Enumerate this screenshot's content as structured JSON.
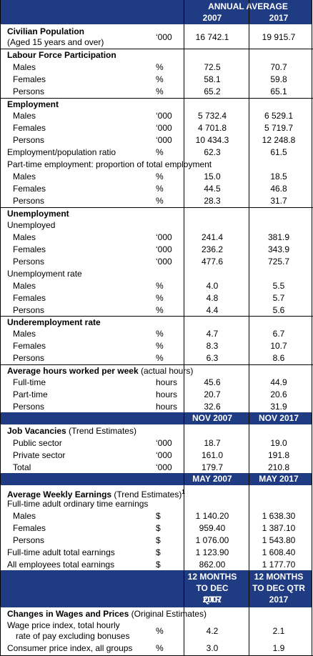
{
  "header": {
    "annual_average": "ANNUAL AVERAGE",
    "col1": "2007",
    "col2": "2017"
  },
  "civilian": {
    "label_line1": "Civilian Population",
    "label_line2": "(Aged 15 years and over)",
    "unit": "‘000",
    "v1": "16 742.1",
    "v2": "19 915.7"
  },
  "lfp": {
    "title": "Labour Force Participation",
    "rows": [
      {
        "label": "Males",
        "unit": "%",
        "v1": "72.5",
        "v2": "70.7"
      },
      {
        "label": "Females",
        "unit": "%",
        "v1": "58.1",
        "v2": "59.8"
      },
      {
        "label": "Persons",
        "unit": "%",
        "v1": "65.2",
        "v2": "65.1"
      }
    ]
  },
  "employment": {
    "title": "Employment",
    "rows": [
      {
        "label": "Males",
        "unit": "‘000",
        "v1": "5 732.4",
        "v2": "6 529.1"
      },
      {
        "label": "Females",
        "unit": "‘000",
        "v1": "4 701.8",
        "v2": "5 719.7"
      },
      {
        "label": "Persons",
        "unit": "‘000",
        "v1": "10 434.3",
        "v2": "12 248.8"
      }
    ],
    "ratio": {
      "label": "Employment/population ratio",
      "unit": "%",
      "v1": "62.3",
      "v2": "61.5"
    },
    "parttime_label": "Part-time employment: proportion of total employment",
    "parttime_rows": [
      {
        "label": "Males",
        "unit": "%",
        "v1": "15.0",
        "v2": "18.5"
      },
      {
        "label": "Females",
        "unit": "%",
        "v1": "44.5",
        "v2": "46.8"
      },
      {
        "label": "Persons",
        "unit": "%",
        "v1": "28.3",
        "v2": "31.7"
      }
    ]
  },
  "unemployment": {
    "title": "Unemployment",
    "unemployed_label": "Unemployed",
    "unemployed_rows": [
      {
        "label": "Males",
        "unit": "‘000",
        "v1": "241.4",
        "v2": "381.9"
      },
      {
        "label": "Females",
        "unit": "‘000",
        "v1": "236.2",
        "v2": "343.9"
      },
      {
        "label": "Persons",
        "unit": "‘000",
        "v1": "477.6",
        "v2": "725.7"
      }
    ],
    "rate_label": "Unemployment rate",
    "rate_rows": [
      {
        "label": "Males",
        "unit": "%",
        "v1": "4.0",
        "v2": "5.5"
      },
      {
        "label": "Females",
        "unit": "%",
        "v1": "4.8",
        "v2": "5.7"
      },
      {
        "label": "Persons",
        "unit": "%",
        "v1": "4.4",
        "v2": "5.6"
      }
    ]
  },
  "underemployment": {
    "title": "Underemployment rate",
    "rows": [
      {
        "label": "Males",
        "unit": "%",
        "v1": "4.7",
        "v2": "6.7"
      },
      {
        "label": "Females",
        "unit": "%",
        "v1": "8.3",
        "v2": "10.7"
      },
      {
        "label": "Persons",
        "unit": "%",
        "v1": "6.3",
        "v2": "8.6"
      }
    ]
  },
  "hours": {
    "title_bold": "Average hours worked per week",
    "title_rest": " (actual hours)",
    "rows": [
      {
        "label": "Full-time",
        "unit": "hours",
        "v1": "45.6",
        "v2": "44.9"
      },
      {
        "label": "Part-time",
        "unit": "hours",
        "v1": "20.7",
        "v2": "20.6"
      },
      {
        "label": "Persons",
        "unit": "hours",
        "v1": "32.6",
        "v2": "31.9"
      }
    ]
  },
  "vacancies": {
    "header_col1": "NOV 2007",
    "header_col2": "NOV 2017",
    "title_bold": "Job Vacancies",
    "title_rest": " (Trend Estimates)",
    "rows": [
      {
        "label": "Public sector",
        "unit": "‘000",
        "v1": "18.7",
        "v2": "19.0"
      },
      {
        "label": "Private sector",
        "unit": "‘000",
        "v1": "161.0",
        "v2": "191.8"
      },
      {
        "label": "Total",
        "unit": "‘000",
        "v1": "179.7",
        "v2": "210.8"
      }
    ]
  },
  "earnings": {
    "header_col1": "MAY 2007",
    "header_col2": "MAY 2017",
    "title_bold": "Average Weekly Earnings",
    "title_rest": " (Trend Estimates)",
    "footnote": "1",
    "fulltime_label": "Full-time adult ordinary time earnings",
    "fulltime_rows": [
      {
        "label": "Males",
        "unit": "$",
        "v1": "1 140.20",
        "v2": "1 638.30"
      },
      {
        "label": "Females",
        "unit": "$",
        "v1": "959.40",
        "v2": "1 387.10"
      },
      {
        "label": "Persons",
        "unit": "$",
        "v1": "1 076.00",
        "v2": "1 543.80"
      }
    ],
    "other_rows": [
      {
        "label": "Full-time adult total earnings",
        "unit": "$",
        "v1": "1 123.90",
        "v2": "1 608.40"
      },
      {
        "label": "All employees total earnings",
        "unit": "$",
        "v1": "862.00",
        "v2": "1 177.70"
      }
    ]
  },
  "wages": {
    "header_col1": [
      "12 MONTHS",
      "TO DEC QTR",
      "2007"
    ],
    "header_col2": [
      "12 MONTHS",
      "TO DEC QTR",
      "2017"
    ],
    "title_bold": "Changes in Wages and Prices",
    "title_rest": " (Original Estimates)",
    "wpi_line1": "Wage price index, total hourly",
    "wpi_line2": "rate of pay excluding bonuses",
    "wpi_unit": "%",
    "wpi_v1": "4.2",
    "wpi_v2": "2.1",
    "cpi_label": "Consumer price index, all groups",
    "cpi_unit": "%",
    "cpi_v1": "3.0",
    "cpi_v2": "1.9"
  }
}
